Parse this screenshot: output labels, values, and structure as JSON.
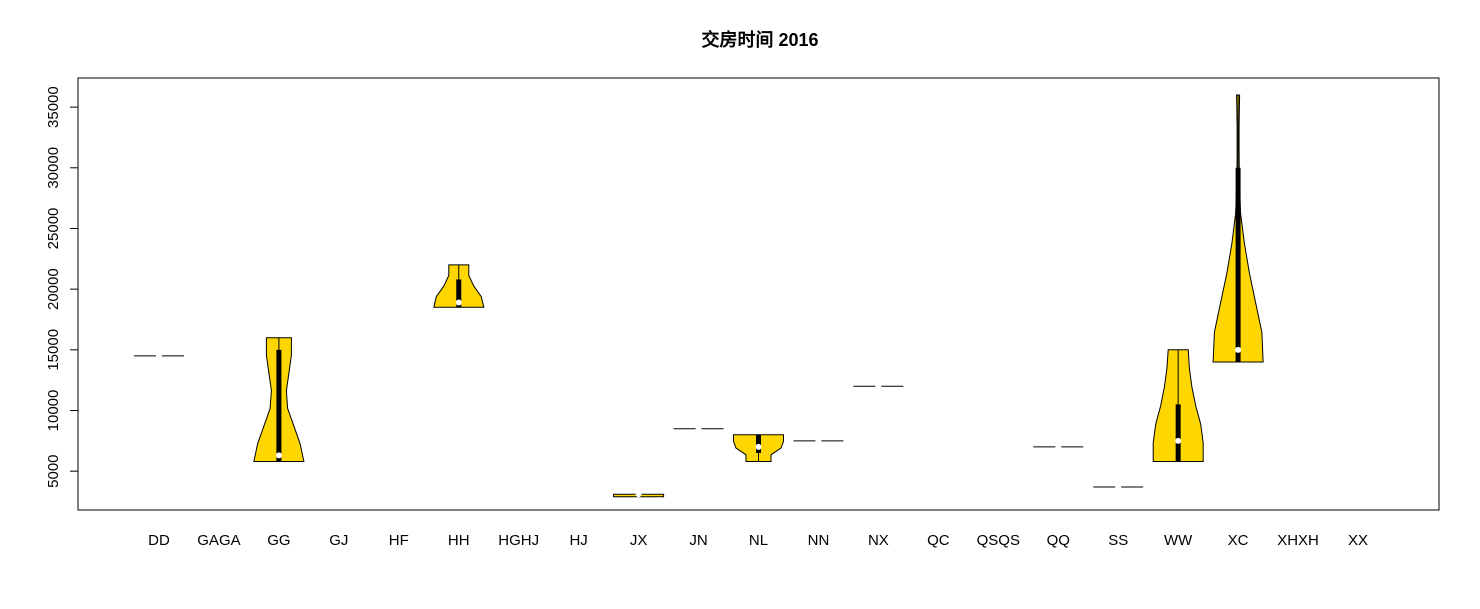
{
  "chart_data": {
    "type": "violin",
    "title": "交房时间 2016",
    "categories": [
      "DD",
      "GAGA",
      "GG",
      "GJ",
      "HF",
      "HH",
      "HGHJ",
      "HJ",
      "JX",
      "JN",
      "NL",
      "NN",
      "NX",
      "QC",
      "QSQS",
      "QQ",
      "SS",
      "WW",
      "XC",
      "XHXH",
      "XX"
    ],
    "color": "#FFD700",
    "ylim": [
      1800,
      37400
    ],
    "yticks": [
      5000,
      10000,
      15000,
      20000,
      25000,
      30000,
      35000
    ],
    "violins": [
      {
        "min": 14500,
        "q1": 14500,
        "median": 14500,
        "q3": 14500,
        "max": 14500,
        "density": [
          1
        ]
      },
      null,
      {
        "min": 5800,
        "q1": 5800,
        "median": 6300,
        "q3": 15000,
        "max": 16000,
        "density": [
          1,
          0.85,
          0.6,
          0.35,
          0.3,
          0.4,
          0.5,
          0.5
        ]
      },
      null,
      null,
      {
        "min": 18500,
        "q1": 18500,
        "median": 18900,
        "q3": 20800,
        "max": 22000,
        "density": [
          1,
          0.9,
          0.6,
          0.4,
          0.4
        ]
      },
      null,
      null,
      {
        "min": 2900,
        "q1": 2900,
        "median": 3100,
        "q3": 3100,
        "max": 3100,
        "density": [
          1,
          1
        ]
      },
      {
        "min": 8500,
        "q1": 8500,
        "median": 8500,
        "q3": 8500,
        "max": 8500,
        "density": [
          1
        ]
      },
      {
        "min": 5800,
        "q1": 6500,
        "median": 7000,
        "q3": 8000,
        "max": 8000,
        "density": [
          0.5,
          0.5,
          0.9,
          1,
          1
        ]
      },
      {
        "min": 7500,
        "q1": 7500,
        "median": 7500,
        "q3": 7500,
        "max": 7500,
        "density": [
          1
        ]
      },
      {
        "min": 12000,
        "q1": 12000,
        "median": 12000,
        "q3": 12000,
        "max": 12000,
        "density": [
          1
        ]
      },
      null,
      null,
      {
        "min": 7000,
        "q1": 7000,
        "median": 7000,
        "q3": 7000,
        "max": 7000,
        "density": [
          1
        ]
      },
      {
        "min": 3700,
        "q1": 3700,
        "median": 3700,
        "q3": 3700,
        "max": 3700,
        "density": [
          1
        ]
      },
      {
        "min": 5800,
        "q1": 5800,
        "median": 7500,
        "q3": 10500,
        "max": 15000,
        "density": [
          1,
          1,
          0.9,
          0.7,
          0.55,
          0.45,
          0.4
        ]
      },
      {
        "min": 14000,
        "q1": 14000,
        "median": 15000,
        "q3": 30000,
        "max": 36000,
        "density": [
          1,
          0.95,
          0.7,
          0.45,
          0.25,
          0.1,
          0.05,
          0.04,
          0.04,
          0.06
        ]
      },
      null,
      null
    ]
  }
}
